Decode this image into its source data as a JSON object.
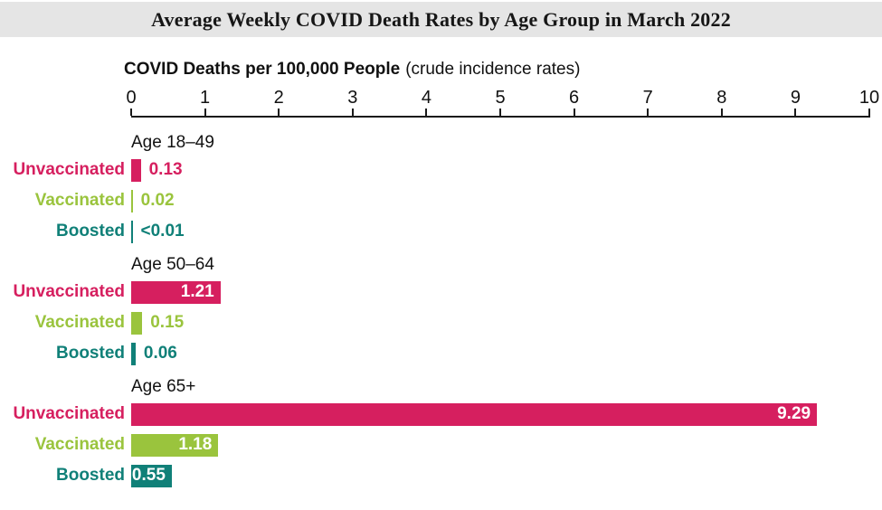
{
  "title": "Average Weekly COVID Death Rates by Age Group in March 2022",
  "axis": {
    "label_bold": "COVID Deaths per 100,000 People",
    "label_normal": "(crude incidence rates)",
    "ticks": [
      "0",
      "1",
      "2",
      "3",
      "4",
      "5",
      "6",
      "7",
      "8",
      "9",
      "10"
    ]
  },
  "colors": {
    "unvaccinated": "#D61F5F",
    "vaccinated": "#9AC43D",
    "boosted": "#108078",
    "title_band_bg": "#E5E5E5",
    "axis": "#1a1a1a"
  },
  "chart_data": {
    "type": "bar",
    "orientation": "horizontal",
    "title": "Average Weekly COVID Death Rates by Age Group in March 2022",
    "xlabel": "COVID Deaths per 100,000 People (crude incidence rates)",
    "xlim": [
      0,
      10
    ],
    "x_ticks": [
      0,
      1,
      2,
      3,
      4,
      5,
      6,
      7,
      8,
      9,
      10
    ],
    "grid": false,
    "legend": "row labels, colored per series",
    "series_colors": {
      "Unvaccinated": "#D61F5F",
      "Vaccinated": "#9AC43D",
      "Boosted": "#108078"
    },
    "groups": [
      {
        "label": "Age 18–49",
        "bars": [
          {
            "series": "Unvaccinated",
            "value": 0.13,
            "display": "0.13",
            "label_position": "outside"
          },
          {
            "series": "Vaccinated",
            "value": 0.02,
            "display": "0.02",
            "label_position": "outside"
          },
          {
            "series": "Boosted",
            "value": 0.005,
            "display": "<0.01",
            "label_position": "outside"
          }
        ]
      },
      {
        "label": "Age 50–64",
        "bars": [
          {
            "series": "Unvaccinated",
            "value": 1.21,
            "display": "1.21",
            "label_position": "inside"
          },
          {
            "series": "Vaccinated",
            "value": 0.15,
            "display": "0.15",
            "label_position": "outside"
          },
          {
            "series": "Boosted",
            "value": 0.06,
            "display": "0.06",
            "label_position": "outside"
          }
        ]
      },
      {
        "label": "Age 65+",
        "bars": [
          {
            "series": "Unvaccinated",
            "value": 9.29,
            "display": "9.29",
            "label_position": "inside"
          },
          {
            "series": "Vaccinated",
            "value": 1.18,
            "display": "1.18",
            "label_position": "inside"
          },
          {
            "series": "Boosted",
            "value": 0.55,
            "display": "0.55",
            "label_position": "inside"
          }
        ]
      }
    ]
  }
}
